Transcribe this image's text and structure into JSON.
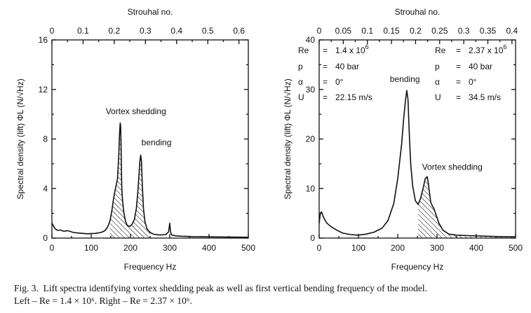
{
  "caption": {
    "line1": "Fig. 3.  Lift spectra identifying vortex shedding peak as well as first vertical bending frequency of the model.",
    "line2": "Left – Re = 1.4 × 10⁶. Right – Re = 2.37 × 10⁶."
  },
  "chart_data": [
    {
      "type": "line",
      "xlabel": "Frequency Hz",
      "ylabel": "Spectral density (lift) ΦL (N/√Hz)",
      "top_axis_label": "Strouhal no.",
      "xlim": [
        0,
        500
      ],
      "ylim": [
        0,
        16
      ],
      "x_ticks": [
        "0",
        "100",
        "200",
        "300",
        "400",
        "500"
      ],
      "y_ticks": [
        "0",
        "4",
        "8",
        "12",
        "16"
      ],
      "top_ticks": [
        "0",
        "0.1",
        "0.2",
        "0.3",
        "0.4",
        "0.5",
        "0.6"
      ],
      "top_max": 0.63,
      "params": [
        {
          "sym": "Re",
          "eq": "=",
          "val": "1.4 x 10",
          "sup": "6"
        },
        {
          "sym": "p",
          "eq": "=",
          "val": "40 bar",
          "sup": ""
        },
        {
          "sym": "α",
          "eq": "=",
          "val": "0°",
          "sup": ""
        },
        {
          "sym": "U",
          "eq": "=",
          "val": "22.15 m/s",
          "sup": ""
        }
      ],
      "annotations": [
        {
          "text": "Vortex shedding",
          "x": 137,
          "y": 10.0
        },
        {
          "text": "bending",
          "x": 228,
          "y": 7.5
        }
      ],
      "shaded": {
        "label": "vortex shedding band",
        "from": 148,
        "to": 250
      },
      "series": [
        {
          "name": "lift spectrum",
          "x": [
            0,
            3,
            6,
            10,
            15,
            22,
            30,
            40,
            55,
            70,
            90,
            110,
            125,
            135,
            142,
            148,
            153,
            157,
            161,
            164,
            167,
            170,
            172,
            174,
            175,
            176,
            177,
            178,
            180,
            183,
            187,
            192,
            198,
            204,
            210,
            215,
            219,
            222,
            224,
            226,
            228,
            230,
            233,
            237,
            242,
            250,
            260,
            275,
            290,
            297,
            300,
            302,
            305,
            315,
            330,
            360,
            400,
            450,
            500
          ],
          "y": [
            1.2,
            1.05,
            0.85,
            0.7,
            0.62,
            0.65,
            0.55,
            0.6,
            0.45,
            0.4,
            0.35,
            0.38,
            0.45,
            0.6,
            0.9,
            1.4,
            2.3,
            3.2,
            3.9,
            4.3,
            4.8,
            6.5,
            8.3,
            9.3,
            9.0,
            7.5,
            5.5,
            3.9,
            3.0,
            2.1,
            1.4,
            1.0,
            0.95,
            1.1,
            1.5,
            2.4,
            3.8,
            5.2,
            6.2,
            6.7,
            6.2,
            4.4,
            2.4,
            1.3,
            0.75,
            0.45,
            0.3,
            0.25,
            0.28,
            0.5,
            1.2,
            0.5,
            0.25,
            0.18,
            0.15,
            0.12,
            0.1,
            0.08,
            0.07
          ]
        }
      ]
    },
    {
      "type": "line",
      "xlabel": "Frequency Hz",
      "ylabel": "Spectral density (lift) ΦL (N/√Hz)",
      "top_axis_label": "Strouhal no.",
      "xlim": [
        0,
        500
      ],
      "ylim": [
        0,
        40
      ],
      "x_ticks": [
        "0",
        "100",
        "200",
        "300",
        "400",
        "500"
      ],
      "y_ticks": [
        "0",
        "10",
        "20",
        "30",
        "40"
      ],
      "top_ticks": [
        "0",
        "0.05",
        "0.1",
        "0.15",
        "0.2",
        "0.25",
        "0.3",
        "0.35",
        "0.4"
      ],
      "top_max": 0.4075,
      "params": [
        {
          "sym": "Re",
          "eq": "=",
          "val": "2.37 x 10",
          "sup": "6"
        },
        {
          "sym": "p",
          "eq": "=",
          "val": "40 bar",
          "sup": ""
        },
        {
          "sym": "α",
          "eq": "=",
          "val": "0°",
          "sup": ""
        },
        {
          "sym": "U",
          "eq": "=",
          "val": "34.5 m/s",
          "sup": ""
        }
      ],
      "annotations": [
        {
          "text": "bending",
          "x": 180,
          "y": 31.5
        },
        {
          "text": "Vortex shedding",
          "x": 262,
          "y": 13.8
        }
      ],
      "shaded": {
        "label": "vortex shedding band",
        "from": 250,
        "to": 500
      },
      "series": [
        {
          "name": "lift spectrum",
          "x": [
            0,
            3,
            6,
            10,
            15,
            20,
            30,
            45,
            60,
            80,
            100,
            120,
            140,
            160,
            175,
            190,
            200,
            210,
            215,
            220,
            223,
            226,
            228,
            230,
            233,
            238,
            245,
            252,
            258,
            265,
            270,
            275,
            278,
            281,
            284,
            288,
            292,
            298,
            305,
            315,
            330,
            350,
            380,
            420,
            460,
            500
          ],
          "y": [
            3.0,
            5.0,
            5.3,
            4.4,
            3.6,
            3.0,
            2.3,
            1.6,
            1.0,
            0.7,
            0.6,
            0.8,
            1.2,
            2.0,
            3.5,
            7.0,
            12.0,
            19.0,
            24.0,
            28.0,
            29.8,
            28.0,
            24.0,
            20.0,
            15.0,
            10.5,
            7.5,
            6.8,
            8.0,
            10.2,
            12.0,
            12.4,
            11.0,
            9.0,
            7.3,
            6.5,
            6.0,
            4.6,
            3.0,
            1.6,
            0.8,
            0.6,
            0.5,
            0.4,
            0.3,
            0.25
          ]
        }
      ]
    }
  ]
}
